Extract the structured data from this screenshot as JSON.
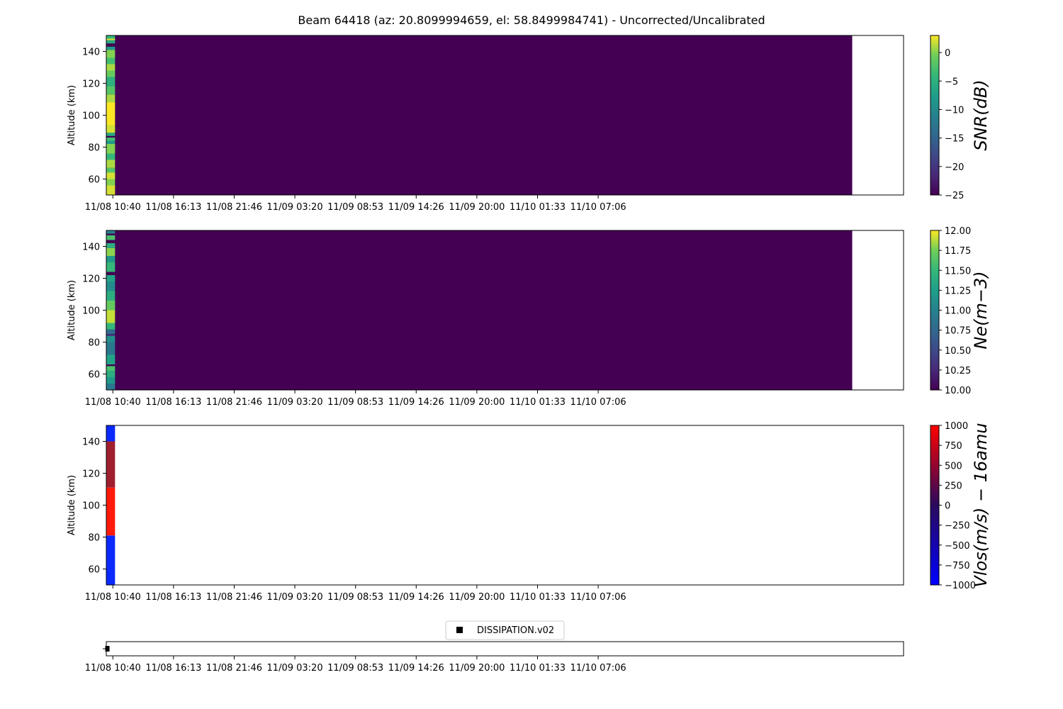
{
  "figure": {
    "title": "Beam 64418 (az: 20.8099994659, el: 58.8499984741) - Uncorrected/Uncalibrated"
  },
  "colors": {
    "background": "#ffffff",
    "viridis_low": "#440154",
    "viridis_high": "#fde725",
    "bwr_blue": "#0000ff",
    "bwr_red": "#ff0000",
    "dark_red": "#a01f2f"
  },
  "chart_data": [
    {
      "type": "heatmap",
      "name": "snr",
      "ylabel": "Altitude (km)",
      "ylim": [
        50,
        150
      ],
      "yticks": [
        60,
        80,
        100,
        120,
        140
      ],
      "xticks": [
        "11/08 10:40",
        "11/08 16:13",
        "11/08 21:46",
        "11/09 03:20",
        "11/09 08:53",
        "11/09 14:26",
        "11/09 20:00",
        "11/10 01:33",
        "11/10 07:06"
      ],
      "colormap": "viridis",
      "colorbar": {
        "label": "SNR(dB)",
        "min": -25,
        "max": 3,
        "ticks": [
          0,
          -5,
          -10,
          -15,
          -20,
          -25
        ],
        "tick_labels": [
          "0",
          "−5",
          "−10",
          "−15",
          "−20",
          "−25"
        ]
      },
      "data_extent_hours": [
        -0.6,
        67.7
      ],
      "first_column_hours": [
        -0.6,
        0.2
      ],
      "fill_value": -25,
      "first_column_bands": [
        {
          "from": 50,
          "to": 56,
          "value": 2
        },
        {
          "from": 56,
          "to": 60,
          "value": 0
        },
        {
          "from": 60,
          "to": 64,
          "value": 2
        },
        {
          "from": 64,
          "to": 67,
          "value": -2
        },
        {
          "from": 67,
          "to": 72,
          "value": 1
        },
        {
          "from": 72,
          "to": 76,
          "value": -4
        },
        {
          "from": 76,
          "to": 82,
          "value": 0
        },
        {
          "from": 82,
          "to": 84,
          "value": -8
        },
        {
          "from": 84,
          "to": 86,
          "value": -3
        },
        {
          "from": 86,
          "to": 87,
          "value": -25
        },
        {
          "from": 87,
          "to": 89,
          "value": -6
        },
        {
          "from": 89,
          "to": 94,
          "value": 2
        },
        {
          "from": 94,
          "to": 108,
          "value": 3
        },
        {
          "from": 108,
          "to": 113,
          "value": 1
        },
        {
          "from": 113,
          "to": 118,
          "value": -2
        },
        {
          "from": 118,
          "to": 124,
          "value": -5
        },
        {
          "from": 124,
          "to": 128,
          "value": -1
        },
        {
          "from": 128,
          "to": 132,
          "value": 1
        },
        {
          "from": 132,
          "to": 136,
          "value": -3
        },
        {
          "from": 136,
          "to": 141,
          "value": 0
        },
        {
          "from": 141,
          "to": 143,
          "value": -8
        },
        {
          "from": 143,
          "to": 145,
          "value": -25
        },
        {
          "from": 145,
          "to": 147,
          "value": -6
        },
        {
          "from": 147,
          "to": 148,
          "value": 2
        },
        {
          "from": 148,
          "to": 150,
          "value": -4
        }
      ]
    },
    {
      "type": "heatmap",
      "name": "ne",
      "ylabel": "Altitude (km)",
      "ylim": [
        50,
        150
      ],
      "yticks": [
        60,
        80,
        100,
        120,
        140
      ],
      "xticks": [
        "11/08 10:40",
        "11/08 16:13",
        "11/08 21:46",
        "11/09 03:20",
        "11/09 08:53",
        "11/09 14:26",
        "11/09 20:00",
        "11/10 01:33",
        "11/10 07:06"
      ],
      "colormap": "viridis",
      "colorbar": {
        "label": "Ne(m−3)",
        "min": 10,
        "max": 12,
        "ticks": [
          12,
          11.75,
          11.5,
          11.25,
          11,
          10.75,
          10.5,
          10.25,
          10
        ],
        "tick_labels": [
          "12.00",
          "11.75",
          "11.50",
          "11.25",
          "11.00",
          "10.75",
          "10.50",
          "10.25",
          "10.00"
        ]
      },
      "data_extent_hours": [
        -0.6,
        67.7
      ],
      "first_column_hours": [
        -0.6,
        0.2
      ],
      "fill_value": 10,
      "first_column_bands": [
        {
          "from": 50,
          "to": 54,
          "value": 10.9
        },
        {
          "from": 54,
          "to": 58,
          "value": 11.2
        },
        {
          "from": 58,
          "to": 62,
          "value": 11.4
        },
        {
          "from": 62,
          "to": 65,
          "value": 11.6
        },
        {
          "from": 65,
          "to": 66,
          "value": 10.0
        },
        {
          "from": 66,
          "to": 72,
          "value": 11.3
        },
        {
          "from": 72,
          "to": 80,
          "value": 10.9
        },
        {
          "from": 80,
          "to": 84,
          "value": 11.1
        },
        {
          "from": 84,
          "to": 85,
          "value": 10.2
        },
        {
          "from": 85,
          "to": 88,
          "value": 10.8
        },
        {
          "from": 88,
          "to": 92,
          "value": 11.5
        },
        {
          "from": 92,
          "to": 100,
          "value": 11.9
        },
        {
          "from": 100,
          "to": 106,
          "value": 11.7
        },
        {
          "from": 106,
          "to": 112,
          "value": 11.4
        },
        {
          "from": 112,
          "to": 118,
          "value": 11.1
        },
        {
          "from": 118,
          "to": 122,
          "value": 11.3
        },
        {
          "from": 122,
          "to": 124,
          "value": 10.0
        },
        {
          "from": 124,
          "to": 130,
          "value": 11.5
        },
        {
          "from": 130,
          "to": 134,
          "value": 11.2
        },
        {
          "from": 134,
          "to": 139,
          "value": 11.8
        },
        {
          "from": 139,
          "to": 142,
          "value": 11.4
        },
        {
          "from": 142,
          "to": 144,
          "value": 10.0
        },
        {
          "from": 144,
          "to": 147,
          "value": 11.6
        },
        {
          "from": 147,
          "to": 148,
          "value": 10.0
        },
        {
          "from": 148,
          "to": 150,
          "value": 11.0
        }
      ]
    },
    {
      "type": "heatmap",
      "name": "vlos",
      "ylabel": "Altitude (km)",
      "ylim": [
        50,
        150
      ],
      "yticks": [
        60,
        80,
        100,
        120,
        140
      ],
      "xticks": [
        "11/08 10:40",
        "11/08 16:13",
        "11/08 21:46",
        "11/09 03:20",
        "11/09 08:53",
        "11/09 14:26",
        "11/09 20:00",
        "11/10 01:33",
        "11/10 07:06"
      ],
      "colormap": "bwr",
      "colorbar": {
        "label": "Vlos(m/s) − 16amu",
        "min": -1000,
        "max": 1000,
        "ticks": [
          1000,
          750,
          500,
          250,
          0,
          -250,
          -500,
          -750,
          -1000
        ],
        "tick_labels": [
          "1000",
          "750",
          "500",
          "250",
          "0",
          "−250",
          "−500",
          "−750",
          "−1000"
        ]
      },
      "first_column_hours": [
        -0.6,
        0.2
      ],
      "first_column_bands": [
        {
          "from": 50,
          "to": 81,
          "value": -1000
        },
        {
          "from": 81,
          "to": 111,
          "value": 1000
        },
        {
          "from": 111,
          "to": 140,
          "value": 600
        },
        {
          "from": 140,
          "to": 150,
          "value": -1000
        }
      ]
    },
    {
      "type": "scatter",
      "name": "dissipation",
      "legend": {
        "entries": [
          "DISSIPATION.v02"
        ],
        "placement": "top-center"
      },
      "marker": "square",
      "points": [
        {
          "x": -0.5,
          "y": 0
        }
      ],
      "xticks": [
        "11/08 10:40",
        "11/08 16:13",
        "11/08 21:46",
        "11/09 03:20",
        "11/09 08:53",
        "11/09 14:26",
        "11/09 20:00",
        "11/10 01:33",
        "11/10 07:06"
      ]
    }
  ]
}
